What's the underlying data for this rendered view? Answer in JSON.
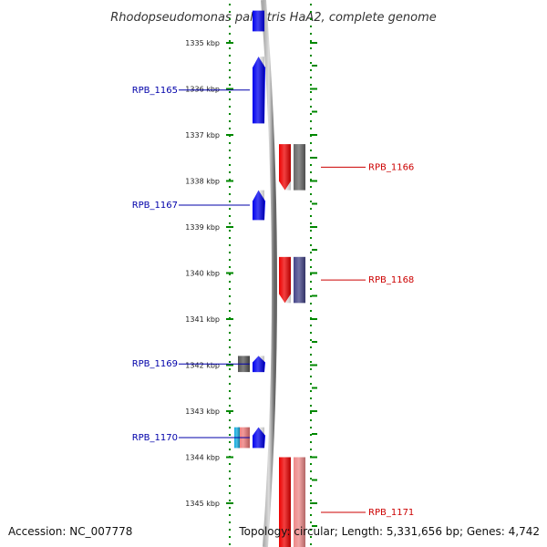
{
  "map": {
    "title": "Rhodopseudomonas palustris HaA2, complete genome",
    "accession": "Accession: NC_007778",
    "summary": "Topology: circular; Length: 5,331,656 bp; Genes: 4,742"
  },
  "scale": {
    "start_kbp": 1334.4,
    "end_kbp": 1345.9,
    "ticks": [
      {
        "kbp": 1335,
        "label": "1335 kbp"
      },
      {
        "kbp": 1336,
        "label": "1336 kbp"
      },
      {
        "kbp": 1337,
        "label": "1337 kbp"
      },
      {
        "kbp": 1338,
        "label": "1338 kbp"
      },
      {
        "kbp": 1339,
        "label": "1339 kbp"
      },
      {
        "kbp": 1340,
        "label": "1340 kbp"
      },
      {
        "kbp": 1341,
        "label": "1341 kbp"
      },
      {
        "kbp": 1342,
        "label": "1342 kbp"
      },
      {
        "kbp": 1343,
        "label": "1343 kbp"
      },
      {
        "kbp": 1344,
        "label": "1344 kbp"
      },
      {
        "kbp": 1345,
        "label": "1345 kbp"
      }
    ]
  },
  "genes": [
    {
      "id": "gene-top-partial",
      "label": "",
      "strand": "left",
      "track": "inner",
      "start_kbp": 1334.3,
      "end_kbp": 1334.75,
      "color": "#0000ee",
      "arrow": false
    },
    {
      "id": "gene-rpb-1165",
      "label": "RPB_1165",
      "strand": "left",
      "track": "inner",
      "start_kbp": 1335.3,
      "end_kbp": 1336.75,
      "color": "#0000ee",
      "arrow": true
    },
    {
      "id": "gene-rpb-1166",
      "label": "RPB_1166",
      "strand": "right",
      "track": "inner",
      "start_kbp": 1337.2,
      "end_kbp": 1338.2,
      "color": "#ee0000",
      "arrow": true
    },
    {
      "id": "gene-rpb-1166-companion",
      "label": "",
      "strand": "right",
      "track": "outer",
      "start_kbp": 1337.2,
      "end_kbp": 1338.2,
      "color": "#666666",
      "arrow": false
    },
    {
      "id": "gene-rpb-1167",
      "label": "RPB_1167",
      "strand": "left",
      "track": "inner",
      "start_kbp": 1338.2,
      "end_kbp": 1338.85,
      "color": "#0000ee",
      "arrow": true
    },
    {
      "id": "gene-rpb-1168",
      "label": "RPB_1168",
      "strand": "right",
      "track": "inner",
      "start_kbp": 1339.65,
      "end_kbp": 1340.65,
      "color": "#ee0000",
      "arrow": true
    },
    {
      "id": "gene-rpb-1168-companion",
      "label": "",
      "strand": "right",
      "track": "outer",
      "start_kbp": 1339.65,
      "end_kbp": 1340.65,
      "color": "#444488",
      "arrow": false
    },
    {
      "id": "gene-rpb-1169",
      "label": "RPB_1169",
      "strand": "left",
      "track": "inner",
      "start_kbp": 1341.8,
      "end_kbp": 1342.15,
      "color": "#0000ee",
      "arrow": true
    },
    {
      "id": "gene-rpb-1169-companion",
      "label": "",
      "strand": "left",
      "track": "outer",
      "start_kbp": 1341.8,
      "end_kbp": 1342.15,
      "color": "#555555",
      "arrow": false
    },
    {
      "id": "gene-rpb-1170",
      "label": "RPB_1170",
      "strand": "left",
      "track": "inner",
      "start_kbp": 1343.35,
      "end_kbp": 1343.8,
      "color": "#0000ee",
      "arrow": true
    },
    {
      "id": "gene-rpb-1170-companion-a",
      "label": "",
      "strand": "left",
      "track": "outer",
      "start_kbp": 1343.35,
      "end_kbp": 1343.8,
      "color": "#ee7777",
      "arrow": false
    },
    {
      "id": "gene-rpb-1170-companion-b",
      "label": "",
      "strand": "left",
      "track": "outer2",
      "start_kbp": 1343.35,
      "end_kbp": 1343.8,
      "color": "#11aadd",
      "arrow": false
    },
    {
      "id": "gene-rpb-1171",
      "label": "RPB_1171",
      "strand": "right",
      "track": "inner",
      "start_kbp": 1344.0,
      "end_kbp": 1346.0,
      "color": "#ee0000",
      "arrow": false
    },
    {
      "id": "gene-rpb-1171-companion",
      "label": "",
      "strand": "right",
      "track": "outer",
      "start_kbp": 1344.0,
      "end_kbp": 1346.0,
      "color": "#ee8888",
      "arrow": false
    }
  ],
  "colors": {
    "backbone": "#888888",
    "dotted_scale": "#008800",
    "forward_label": "#0000aa",
    "reverse_label": "#cc0000"
  }
}
